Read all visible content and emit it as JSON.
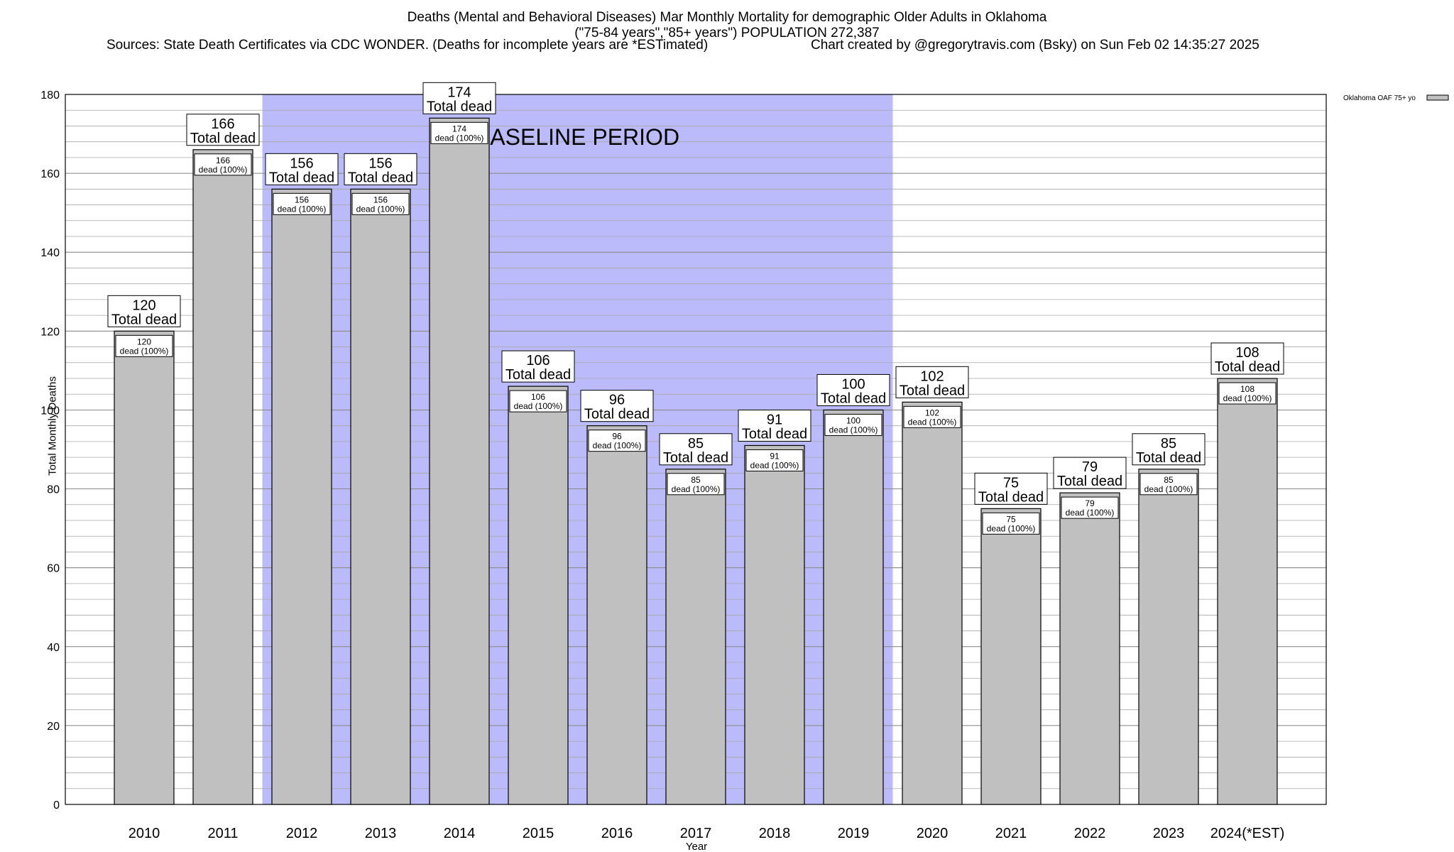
{
  "chart_data": {
    "type": "bar",
    "title": "Deaths (Mental and Behavioral Diseases) Mar Monthly Mortality for demographic Older Adults in Oklahoma",
    "subtitle": "(\"75-84 years\",\"85+ years\") POPULATION 272,387",
    "sources": "Sources: State Death Certificates via CDC WONDER. (Deaths for incomplete years are *ESTimated)",
    "credit": "Chart created by @gregorytravis.com (Bsky) on Sun Feb 02 14:35:27 2025",
    "xlabel": "Year",
    "ylabel": "Total Monthly Deaths",
    "ylim": [
      0,
      180
    ],
    "yticks": [
      0,
      20,
      40,
      60,
      80,
      100,
      120,
      140,
      160,
      180
    ],
    "minor_grid_step": 4,
    "categories": [
      "2010",
      "2011",
      "2012",
      "2013",
      "2014",
      "2015",
      "2016",
      "2017",
      "2018",
      "2019",
      "2020",
      "2021",
      "2022",
      "2023",
      "2024(*EST)"
    ],
    "values": [
      120,
      166,
      156,
      156,
      174,
      106,
      96,
      85,
      91,
      100,
      102,
      75,
      79,
      85,
      108
    ],
    "total_label": "Total dead",
    "inner_label": "dead (100%)",
    "baseline": {
      "label": "BASELINE PERIOD",
      "start_category": "2012",
      "end_category": "2019",
      "color": "#bbbbfb"
    },
    "legend": {
      "label": "Oklahoma OAF 75+ yo",
      "placement": "top-right"
    },
    "bar_color": "#c0c0c0",
    "grid": true
  }
}
